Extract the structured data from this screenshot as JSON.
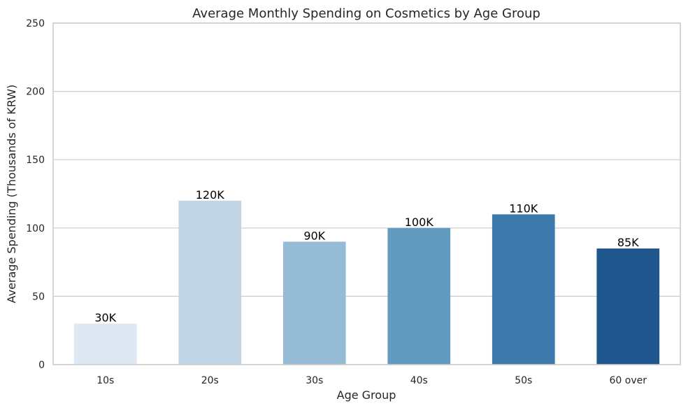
{
  "chart_data": {
    "type": "bar",
    "title": "Average Monthly Spending on Cosmetics by Age Group",
    "xlabel": "Age Group",
    "ylabel": "Average Spending (Thousands of KRW)",
    "categories": [
      "10s",
      "20s",
      "30s",
      "40s",
      "50s",
      "60 over"
    ],
    "values": [
      30,
      120,
      90,
      100,
      110,
      85
    ],
    "data_labels": [
      "30K",
      "120K",
      "90K",
      "100K",
      "110K",
      "85K"
    ],
    "ylim": [
      0,
      250
    ],
    "yticks": [
      0,
      50,
      100,
      150,
      200,
      250
    ],
    "grid": "horizontal",
    "colors": [
      "#dde8f3",
      "#c0d6e7",
      "#95bcd4",
      "#629bbf",
      "#3d7aab",
      "#1f568e"
    ]
  }
}
